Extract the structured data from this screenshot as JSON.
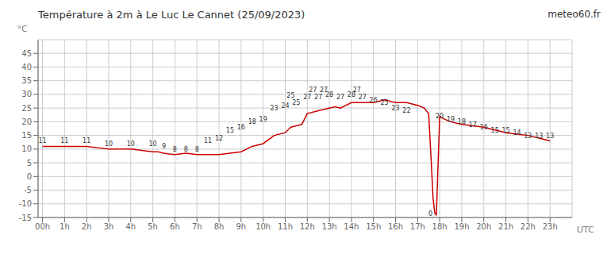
{
  "chart_data": {
    "type": "line",
    "title": "Température à 2m à Le Luc Le Cannet (25/09/2023)",
    "watermark": "meteo60.fr",
    "xlabel": "UTC",
    "ylabel": "°C",
    "color": "#cc0000",
    "grid": true,
    "xlim": [
      -0.2,
      24.0
    ],
    "ylim": [
      -15,
      50
    ],
    "xticks": [
      {
        "value": 0,
        "label": "00h"
      },
      {
        "value": 1,
        "label": "1h"
      },
      {
        "value": 2,
        "label": "2h"
      },
      {
        "value": 3,
        "label": "3h"
      },
      {
        "value": 4,
        "label": "4h"
      },
      {
        "value": 5,
        "label": "5h"
      },
      {
        "value": 6,
        "label": "6h"
      },
      {
        "value": 7,
        "label": "7h"
      },
      {
        "value": 8,
        "label": "8h"
      },
      {
        "value": 9,
        "label": "9h"
      },
      {
        "value": 10,
        "label": "10h"
      },
      {
        "value": 11,
        "label": "11h"
      },
      {
        "value": 12,
        "label": "12h"
      },
      {
        "value": 13,
        "label": "13h"
      },
      {
        "value": 14,
        "label": "14h"
      },
      {
        "value": 15,
        "label": "15h"
      },
      {
        "value": 16,
        "label": "16h"
      },
      {
        "value": 17,
        "label": "17h"
      },
      {
        "value": 18,
        "label": "18h"
      },
      {
        "value": 19,
        "label": "19h"
      },
      {
        "value": 20,
        "label": "20h"
      },
      {
        "value": 21,
        "label": "21h"
      },
      {
        "value": 22,
        "label": "22h"
      },
      {
        "value": 23,
        "label": "23h"
      }
    ],
    "yticks": [
      -15,
      -10,
      -5,
      0,
      5,
      10,
      15,
      20,
      25,
      30,
      35,
      40,
      45
    ],
    "x": [
      0,
      0.5,
      1,
      1.5,
      2,
      2.5,
      3,
      3.5,
      4,
      4.5,
      5,
      5.25,
      5.5,
      5.75,
      6,
      6.5,
      7,
      7.5,
      8,
      8.5,
      9,
      9.5,
      10,
      10.5,
      11,
      11.25,
      11.5,
      11.75,
      12,
      12.5,
      13,
      13.25,
      13.5,
      14,
      14.25,
      14.5,
      14.75,
      15,
      15.5,
      16,
      16.5,
      17,
      17.3,
      17.5,
      17.62,
      17.7,
      17.78,
      17.85,
      18.0,
      18.2,
      18.5,
      19,
      19.5,
      20,
      20.5,
      21,
      21.5,
      22,
      22.5,
      23
    ],
    "values": [
      11,
      11,
      11,
      11,
      11,
      10.5,
      10,
      10,
      10,
      9.5,
      9,
      9,
      8.5,
      8.2,
      8,
      8.5,
      8,
      8,
      8,
      8.5,
      9,
      11,
      12,
      15,
      16,
      18,
      18.5,
      19,
      23,
      24,
      25,
      25.5,
      25,
      27,
      27,
      27,
      27,
      27,
      28,
      27,
      27,
      26,
      25,
      23,
      5,
      -8,
      -13.5,
      -14,
      22,
      21,
      20,
      19,
      18.5,
      18,
      17,
      16,
      15.5,
      15,
      14,
      13
    ],
    "annotations": [
      {
        "x": 0,
        "y": 11,
        "text": "11"
      },
      {
        "x": 1,
        "y": 11,
        "text": "11"
      },
      {
        "x": 2,
        "y": 11,
        "text": "11"
      },
      {
        "x": 3,
        "y": 10,
        "text": "10"
      },
      {
        "x": 4,
        "y": 10,
        "text": "10"
      },
      {
        "x": 5,
        "y": 10,
        "text": "10"
      },
      {
        "x": 5.5,
        "y": 9,
        "text": "9"
      },
      {
        "x": 6,
        "y": 8,
        "text": "8"
      },
      {
        "x": 6.5,
        "y": 8,
        "text": "8"
      },
      {
        "x": 7,
        "y": 8,
        "text": "8"
      },
      {
        "x": 7.5,
        "y": 11,
        "text": "11"
      },
      {
        "x": 8,
        "y": 12,
        "text": "12"
      },
      {
        "x": 8.5,
        "y": 15,
        "text": "15"
      },
      {
        "x": 9,
        "y": 16,
        "text": "16"
      },
      {
        "x": 9.5,
        "y": 18,
        "text": "18"
      },
      {
        "x": 10,
        "y": 19,
        "text": "19"
      },
      {
        "x": 10.5,
        "y": 23,
        "text": "23"
      },
      {
        "x": 11,
        "y": 24,
        "text": "24"
      },
      {
        "x": 11.25,
        "y": 25,
        "text": "25"
      },
      {
        "x": 11.5,
        "y": 25,
        "text": "25"
      },
      {
        "x": 12,
        "y": 27,
        "text": "27"
      },
      {
        "x": 12.25,
        "y": 27,
        "text": "27"
      },
      {
        "x": 12.5,
        "y": 27,
        "text": "27"
      },
      {
        "x": 12.75,
        "y": 27,
        "text": "27"
      },
      {
        "x": 13,
        "y": 28,
        "text": "28"
      },
      {
        "x": 13.5,
        "y": 27,
        "text": "27"
      },
      {
        "x": 14,
        "y": 28,
        "text": "28"
      },
      {
        "x": 14.25,
        "y": 27,
        "text": "27"
      },
      {
        "x": 14.5,
        "y": 27,
        "text": "27"
      },
      {
        "x": 15,
        "y": 26,
        "text": "26"
      },
      {
        "x": 15.5,
        "y": 25,
        "text": "25"
      },
      {
        "x": 16,
        "y": 23,
        "text": "23"
      },
      {
        "x": 16.5,
        "y": 22,
        "text": "22"
      },
      {
        "x": 18.0,
        "y": 20,
        "text": "20"
      },
      {
        "x": 18.5,
        "y": 19,
        "text": "19"
      },
      {
        "x": 19,
        "y": 18,
        "text": "18"
      },
      {
        "x": 19.5,
        "y": 17,
        "text": "17"
      },
      {
        "x": 20,
        "y": 16,
        "text": "16"
      },
      {
        "x": 20.5,
        "y": 15,
        "text": "15"
      },
      {
        "x": 21,
        "y": 15,
        "text": "15"
      },
      {
        "x": 21.5,
        "y": 14,
        "text": "14"
      },
      {
        "x": 22,
        "y": 13,
        "text": "13"
      },
      {
        "x": 22.5,
        "y": 13,
        "text": "13"
      },
      {
        "x": 23,
        "y": 13,
        "text": "13"
      }
    ],
    "spike_annotation": {
      "x": 17.78,
      "y": -14.5,
      "text": "0"
    }
  }
}
